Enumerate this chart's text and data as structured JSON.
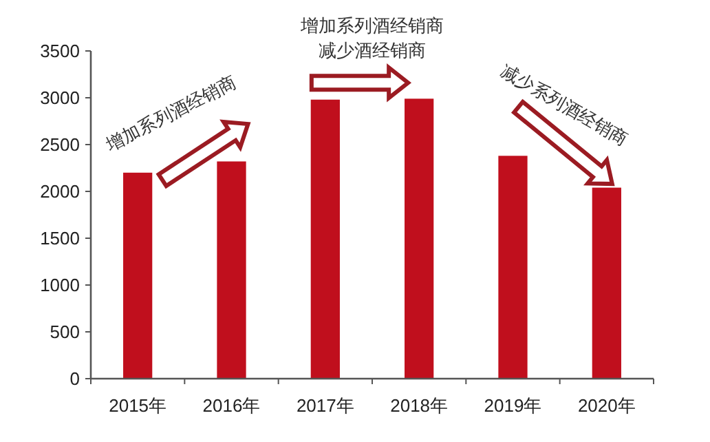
{
  "chart_data": {
    "type": "bar",
    "categories": [
      "2015年",
      "2016年",
      "2017年",
      "2018年",
      "2019年",
      "2020年"
    ],
    "values": [
      2200,
      2320,
      2980,
      2990,
      2380,
      2040
    ],
    "color": "#c00f1d",
    "ylim": [
      0,
      3500
    ],
    "yticks": [
      0,
      500,
      1000,
      1500,
      2000,
      2500,
      3000,
      3500
    ],
    "grid": false,
    "annotations": [
      "增加系列酒经销商",
      "增加系列酒经销商",
      "减少酒经销商",
      "减少系列酒经销商"
    ]
  }
}
